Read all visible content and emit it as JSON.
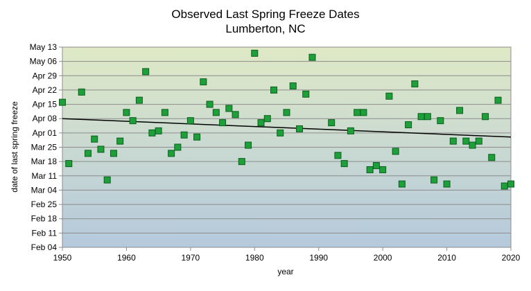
{
  "chart_data": {
    "type": "scatter",
    "title": "Observed  Last  Spring  Freeze  Dates",
    "subtitle": "Lumberton,  NC",
    "xlabel": "year",
    "ylabel": "date of last spring freeze",
    "xlim": [
      1950,
      2020
    ],
    "xticks": [
      "1950",
      "1960",
      "1970",
      "1980",
      "1990",
      "2000",
      "2010",
      "2020"
    ],
    "ylim": [
      "Feb 04",
      "May 13"
    ],
    "yticks": [
      "Feb 04",
      "Feb 11",
      "Feb 18",
      "Feb 25",
      "Mar 04",
      "Mar 11",
      "Mar 18",
      "Mar 25",
      "Apr 01",
      "Apr 08",
      "Apr 15",
      "Apr 22",
      "Apr 29",
      "May 06",
      "May 13"
    ],
    "grid": true,
    "background_gradient": [
      "#dfe9c6",
      "#b4c9dc"
    ],
    "marker_color": "#1e9f3a",
    "marker_edge_color": "#0b5f1e",
    "trend_color": "#000000",
    "trend_line": {
      "x": [
        1950,
        2020
      ],
      "y": [
        "Apr 08",
        "Mar 30"
      ]
    },
    "points": [
      {
        "x": 1950,
        "y": "Apr 16"
      },
      {
        "x": 1951,
        "y": "Mar 17"
      },
      {
        "x": 1953,
        "y": "Apr 21"
      },
      {
        "x": 1954,
        "y": "Mar 22"
      },
      {
        "x": 1955,
        "y": "Mar 29"
      },
      {
        "x": 1956,
        "y": "Mar 24"
      },
      {
        "x": 1957,
        "y": "Mar 09"
      },
      {
        "x": 1958,
        "y": "Mar 22"
      },
      {
        "x": 1959,
        "y": "Mar 28"
      },
      {
        "x": 1960,
        "y": "Apr 11"
      },
      {
        "x": 1961,
        "y": "Apr 07"
      },
      {
        "x": 1962,
        "y": "Apr 17"
      },
      {
        "x": 1963,
        "y": "May 01"
      },
      {
        "x": 1964,
        "y": "Apr 01"
      },
      {
        "x": 1965,
        "y": "Apr 02"
      },
      {
        "x": 1966,
        "y": "Apr 11"
      },
      {
        "x": 1967,
        "y": "Mar 22"
      },
      {
        "x": 1968,
        "y": "Mar 25"
      },
      {
        "x": 1969,
        "y": "Mar 31"
      },
      {
        "x": 1970,
        "y": "Apr 07"
      },
      {
        "x": 1971,
        "y": "Mar 30"
      },
      {
        "x": 1972,
        "y": "Apr 26"
      },
      {
        "x": 1973,
        "y": "Apr 15"
      },
      {
        "x": 1974,
        "y": "Apr 11"
      },
      {
        "x": 1975,
        "y": "Apr 06"
      },
      {
        "x": 1976,
        "y": "Apr 13"
      },
      {
        "x": 1977,
        "y": "Apr 10"
      },
      {
        "x": 1978,
        "y": "Mar 18"
      },
      {
        "x": 1979,
        "y": "Mar 26"
      },
      {
        "x": 1980,
        "y": "May 10"
      },
      {
        "x": 1981,
        "y": "Apr 06"
      },
      {
        "x": 1982,
        "y": "Apr 08"
      },
      {
        "x": 1983,
        "y": "Apr 22"
      },
      {
        "x": 1984,
        "y": "Apr 01"
      },
      {
        "x": 1985,
        "y": "Apr 11"
      },
      {
        "x": 1986,
        "y": "Apr 24"
      },
      {
        "x": 1987,
        "y": "Apr 03"
      },
      {
        "x": 1988,
        "y": "Apr 20"
      },
      {
        "x": 1989,
        "y": "May 08"
      },
      {
        "x": 1992,
        "y": "Apr 06"
      },
      {
        "x": 1993,
        "y": "Mar 21"
      },
      {
        "x": 1994,
        "y": "Mar 17"
      },
      {
        "x": 1995,
        "y": "Apr 02"
      },
      {
        "x": 1996,
        "y": "Apr 11"
      },
      {
        "x": 1997,
        "y": "Apr 11"
      },
      {
        "x": 1998,
        "y": "Mar 14"
      },
      {
        "x": 1999,
        "y": "Mar 16"
      },
      {
        "x": 2000,
        "y": "Mar 14"
      },
      {
        "x": 2001,
        "y": "Apr 19"
      },
      {
        "x": 2002,
        "y": "Mar 23"
      },
      {
        "x": 2003,
        "y": "Mar 07"
      },
      {
        "x": 2004,
        "y": "Apr 05"
      },
      {
        "x": 2005,
        "y": "Apr 25"
      },
      {
        "x": 2006,
        "y": "Apr 09"
      },
      {
        "x": 2007,
        "y": "Apr 09"
      },
      {
        "x": 2008,
        "y": "Mar 09"
      },
      {
        "x": 2009,
        "y": "Apr 07"
      },
      {
        "x": 2010,
        "y": "Mar 07"
      },
      {
        "x": 2011,
        "y": "Mar 28"
      },
      {
        "x": 2012,
        "y": "Apr 12"
      },
      {
        "x": 2013,
        "y": "Mar 28"
      },
      {
        "x": 2014,
        "y": "Mar 26"
      },
      {
        "x": 2015,
        "y": "Mar 28"
      },
      {
        "x": 2016,
        "y": "Apr 09"
      },
      {
        "x": 2017,
        "y": "Mar 20"
      },
      {
        "x": 2018,
        "y": "Apr 17"
      },
      {
        "x": 2019,
        "y": "Mar 06"
      },
      {
        "x": 2020,
        "y": "Mar 07"
      }
    ]
  }
}
